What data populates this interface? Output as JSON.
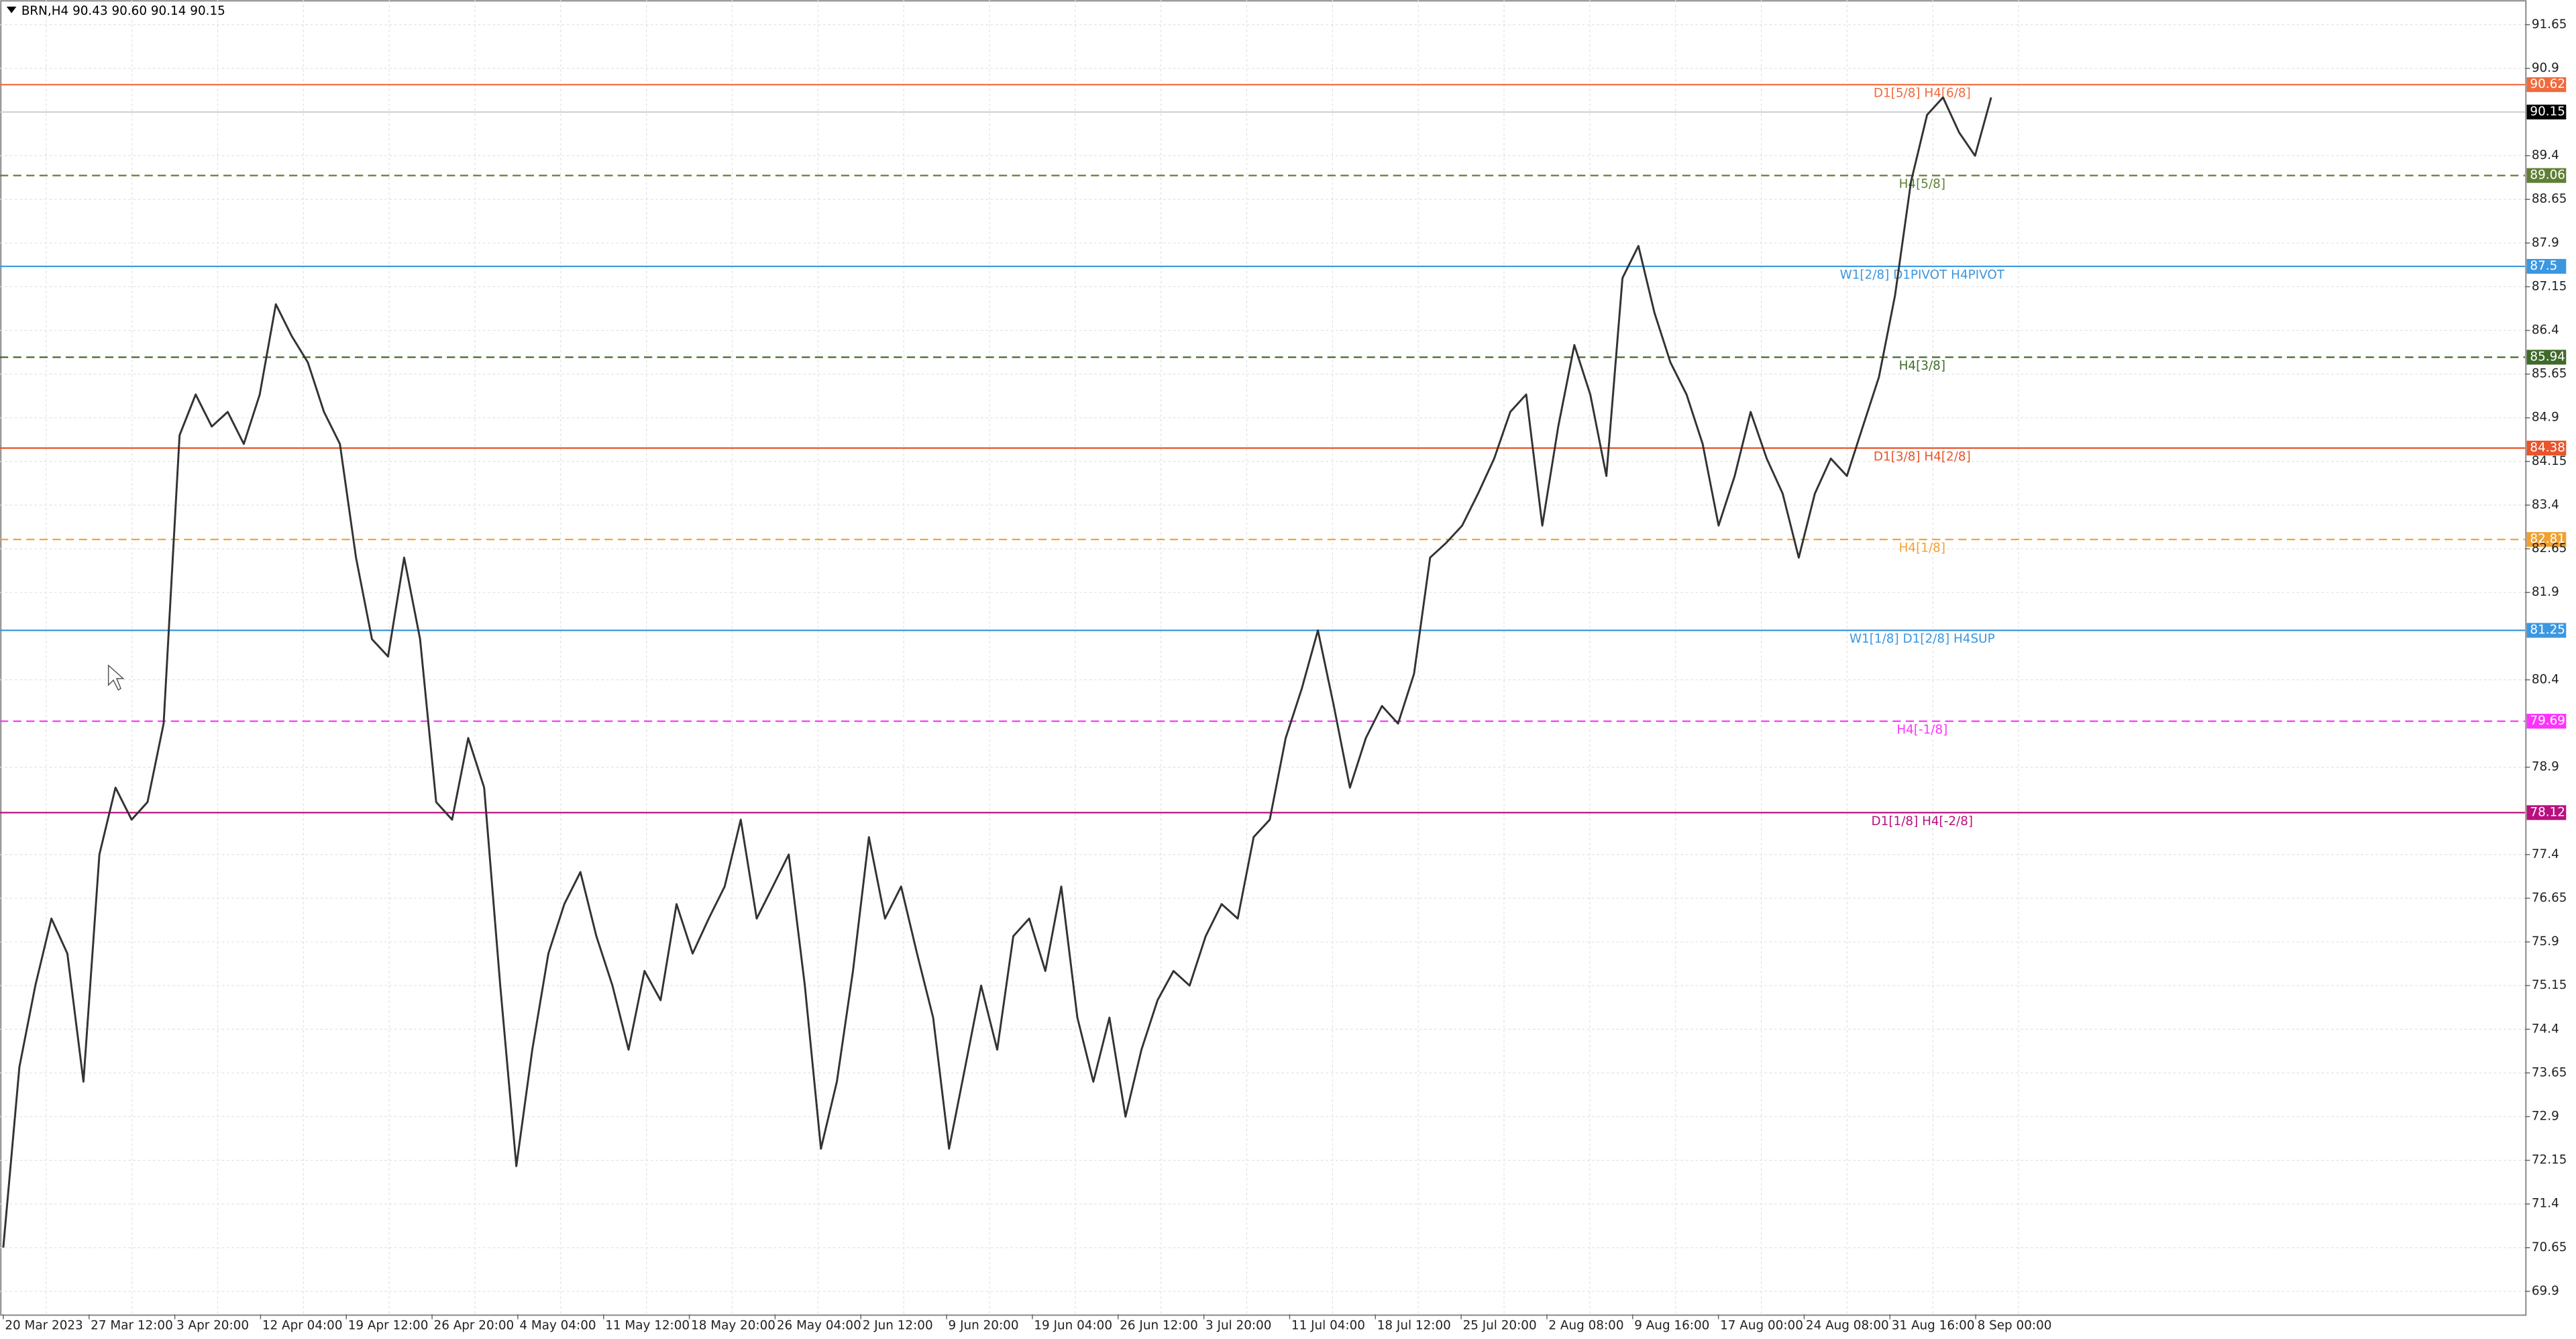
{
  "header": {
    "title": "BRN,H4  90.43 90.60 90.14 90.15"
  },
  "price_axis": {
    "ylim": [
      69.9,
      91.65
    ],
    "ticks": [
      91.65,
      90.9,
      89.4,
      88.65,
      87.9,
      87.15,
      86.4,
      85.65,
      84.9,
      84.15,
      83.4,
      82.65,
      81.9,
      80.4,
      78.9,
      77.4,
      76.65,
      75.9,
      75.15,
      74.4,
      73.65,
      72.9,
      72.15,
      71.4,
      70.65,
      69.9
    ]
  },
  "time_axis": {
    "labels": [
      "20 Mar 2023",
      "27 Mar 12:00",
      "3 Apr 20:00",
      "12 Apr 04:00",
      "19 Apr 12:00",
      "26 Apr 20:00",
      "4 May 04:00",
      "11 May 12:00",
      "18 May 20:00",
      "26 May 04:00",
      "2 Jun 12:00",
      "9 Jun 20:00",
      "19 Jun 04:00",
      "26 Jun 12:00",
      "3 Jul 20:00",
      "11 Jul 04:00",
      "18 Jul 12:00",
      "25 Jul 20:00",
      "2 Aug 08:00",
      "9 Aug 16:00",
      "17 Aug 00:00",
      "24 Aug 08:00",
      "31 Aug 16:00",
      "8 Sep 00:00"
    ]
  },
  "current_price": {
    "value": 90.15,
    "color": "#000000"
  },
  "levels": [
    {
      "price": 90.62,
      "label": "D1[5/8] H4[6/8]",
      "color": "#f06a3c",
      "style": "solid"
    },
    {
      "price": 89.06,
      "label": "H4[5/8]",
      "color": "#5f7f35",
      "style": "dashed"
    },
    {
      "price": 87.5,
      "label": "W1[2/8] D1PIVOT H4PIVOT",
      "color": "#3b97e0",
      "style": "solid"
    },
    {
      "price": 85.94,
      "label": "H4[3/8]",
      "color": "#3f6a2a",
      "style": "dashed"
    },
    {
      "price": 84.38,
      "label": "D1[3/8] H4[2/8]",
      "color": "#e8542c",
      "style": "solid"
    },
    {
      "price": 82.81,
      "label": "H4[1/8]",
      "color": "#f0a030",
      "style": "dashed"
    },
    {
      "price": 81.25,
      "label": "W1[1/8] D1[2/8] H4SUP",
      "color": "#3b97e0",
      "style": "solid"
    },
    {
      "price": 79.69,
      "label": "H4[-1/8]",
      "color": "#ff33ff",
      "style": "dashed"
    },
    {
      "price": 78.12,
      "label": "D1[1/8] H4[-2/8]",
      "color": "#b8107e",
      "style": "solid"
    }
  ],
  "price_series": {
    "color": "#333333",
    "values": [
      70.65,
      73.75,
      75.15,
      76.3,
      75.7,
      73.5,
      77.4,
      78.55,
      78,
      78.3,
      79.65,
      84.6,
      85.3,
      84.75,
      85,
      84.45,
      85.3,
      86.85,
      86.3,
      85.85,
      85,
      84.45,
      82.5,
      81.1,
      80.8,
      82.5,
      81.1,
      78.3,
      78,
      79.4,
      78.55,
      75.15,
      72.05,
      74.05,
      75.7,
      76.55,
      77.1,
      76,
      75.15,
      74.05,
      75.4,
      74.9,
      76.55,
      75.7,
      76.3,
      76.85,
      78,
      76.3,
      76.85,
      77.4,
      75.15,
      72.35,
      73.5,
      75.4,
      77.7,
      76.3,
      76.85,
      75.7,
      74.6,
      72.35,
      73.75,
      75.15,
      74.05,
      76,
      76.3,
      75.4,
      76.85,
      74.6,
      73.5,
      74.6,
      72.9,
      74.05,
      74.9,
      75.4,
      75.15,
      76,
      76.55,
      76.3,
      77.7,
      78,
      79.4,
      80.25,
      81.25,
      79.95,
      78.55,
      79.4,
      79.95,
      79.65,
      80.5,
      82.5,
      82.75,
      83.05,
      83.6,
      84.2,
      85,
      85.3,
      83.05,
      84.75,
      86.15,
      85.3,
      83.9,
      87.3,
      87.85,
      86.7,
      85.85,
      85.3,
      84.45,
      83.05,
      83.9,
      85,
      84.2,
      83.6,
      82.5,
      83.6,
      84.2,
      83.9,
      84.75,
      85.6,
      87,
      88.95,
      90.1,
      90.4,
      89.8,
      89.4,
      90.4
    ]
  }
}
